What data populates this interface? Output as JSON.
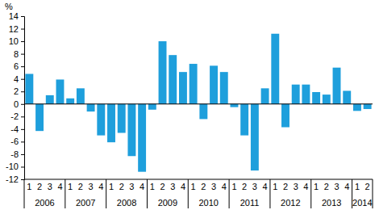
{
  "chart_data": {
    "type": "bar",
    "ylabel": "%",
    "categories": [
      "1",
      "2",
      "3",
      "4",
      "1",
      "2",
      "3",
      "4",
      "1",
      "2",
      "3",
      "4",
      "1",
      "2",
      "3",
      "4",
      "1",
      "2",
      "3",
      "4",
      "1",
      "2",
      "3",
      "4",
      "1",
      "2",
      "3",
      "4",
      "1",
      "2",
      "3",
      "4",
      "1",
      "2"
    ],
    "category_groups": [
      "2006",
      "2007",
      "2008",
      "2009",
      "2010",
      "2011",
      "2012",
      "2013",
      "2014"
    ],
    "values": [
      4.8,
      -4.3,
      1.4,
      3.9,
      0.9,
      2.5,
      -1.2,
      -5.0,
      -6.1,
      -4.6,
      -8.3,
      -10.8,
      -0.9,
      10.0,
      7.8,
      5.1,
      6.4,
      -2.4,
      6.1,
      5.1,
      -0.5,
      -5.0,
      -10.6,
      2.5,
      11.2,
      -3.7,
      3.1,
      3.1,
      1.9,
      1.5,
      5.8,
      2.1,
      -1.1,
      -0.8
    ],
    "color": "#1e9fdc",
    "ylim": [
      -12,
      14
    ],
    "yticks": [
      -12,
      -10,
      -8,
      -6,
      -4,
      -2,
      0,
      2,
      4,
      6,
      8,
      10,
      12,
      14
    ],
    "grid": false
  }
}
